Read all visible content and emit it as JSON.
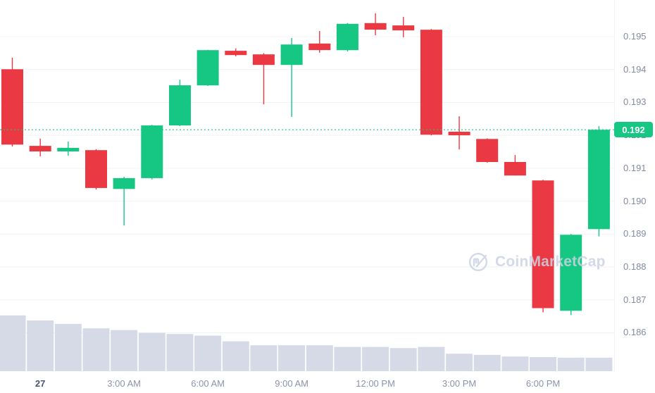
{
  "colors": {
    "up": "#16c784",
    "down": "#ea3943",
    "volume": "#d5dae6",
    "grid": "#f0f2f7",
    "axis_text": "#828ba0",
    "axis_text_emphasis": "#4a5472",
    "badge_bg": "#16c784",
    "badge_text": "#ffffff",
    "watermark": "#ccd3e3"
  },
  "watermark": {
    "label": "CoinMarketCap",
    "icon": "coinmarketcap-logo"
  },
  "price_badge": {
    "label": "0.192"
  },
  "chart_data": {
    "type": "candlestick",
    "title": "",
    "y_axis_side": "right",
    "grid": "horizontal",
    "y_tick_labels": [
      "0.195",
      "0.194",
      "0.193",
      "0.192",
      "0.191",
      "0.190",
      "0.189",
      "0.188",
      "0.187",
      "0.186"
    ],
    "x_ticks": [
      {
        "label": "27",
        "candle_index": 1,
        "emphasized": true
      },
      {
        "label": "3:00 AM",
        "candle_index": 4,
        "emphasized": false
      },
      {
        "label": "6:00 AM",
        "candle_index": 7,
        "emphasized": false
      },
      {
        "label": "9:00 AM",
        "candle_index": 10,
        "emphasized": false
      },
      {
        "label": "12:00 PM",
        "candle_index": 13,
        "emphasized": false
      },
      {
        "label": "3:00 PM",
        "candle_index": 16,
        "emphasized": false
      },
      {
        "label": "6:00 PM",
        "candle_index": 19,
        "emphasized": false
      }
    ],
    "current_price": 0.19217,
    "current_price_label": "0.192",
    "candles": [
      {
        "time": "11 PM",
        "o": 0.19401,
        "h": 0.19436,
        "l": 0.19166,
        "c": 0.19172
      },
      {
        "time": "12 AM",
        "o": 0.19168,
        "h": 0.1919,
        "l": 0.19136,
        "c": 0.19151
      },
      {
        "time": "1 AM",
        "o": 0.19151,
        "h": 0.19181,
        "l": 0.19138,
        "c": 0.19162
      },
      {
        "time": "2 AM",
        "o": 0.19155,
        "h": 0.19158,
        "l": 0.19035,
        "c": 0.1904
      },
      {
        "time": "3 AM",
        "o": 0.19037,
        "h": 0.19074,
        "l": 0.18926,
        "c": 0.1907
      },
      {
        "time": "4 AM",
        "o": 0.1907,
        "h": 0.19232,
        "l": 0.19066,
        "c": 0.1923
      },
      {
        "time": "5 AM",
        "o": 0.1923,
        "h": 0.19369,
        "l": 0.19228,
        "c": 0.19352
      },
      {
        "time": "6 AM",
        "o": 0.19352,
        "h": 0.1946,
        "l": 0.1935,
        "c": 0.19459
      },
      {
        "time": "7 AM",
        "o": 0.19457,
        "h": 0.19464,
        "l": 0.1944,
        "c": 0.19444
      },
      {
        "time": "8 AM",
        "o": 0.19446,
        "h": 0.1945,
        "l": 0.19294,
        "c": 0.19414
      },
      {
        "time": "9 AM",
        "o": 0.19414,
        "h": 0.19496,
        "l": 0.19256,
        "c": 0.19476
      },
      {
        "time": "10 AM",
        "o": 0.19479,
        "h": 0.19517,
        "l": 0.19451,
        "c": 0.19459
      },
      {
        "time": "11 AM",
        "o": 0.19459,
        "h": 0.19541,
        "l": 0.19455,
        "c": 0.19539
      },
      {
        "time": "12 PM",
        "o": 0.19541,
        "h": 0.19571,
        "l": 0.19504,
        "c": 0.19521
      },
      {
        "time": "1 PM",
        "o": 0.19534,
        "h": 0.1956,
        "l": 0.19498,
        "c": 0.19519
      },
      {
        "time": "2 PM",
        "o": 0.19521,
        "h": 0.19523,
        "l": 0.192,
        "c": 0.19202
      },
      {
        "time": "3 PM",
        "o": 0.19211,
        "h": 0.19258,
        "l": 0.19157,
        "c": 0.192
      },
      {
        "time": "4 PM",
        "o": 0.19189,
        "h": 0.19191,
        "l": 0.19117,
        "c": 0.19119
      },
      {
        "time": "5 PM",
        "o": 0.19119,
        "h": 0.1914,
        "l": 0.19078,
        "c": 0.19078
      },
      {
        "time": "6 PM",
        "o": 0.19063,
        "h": 0.19065,
        "l": 0.18662,
        "c": 0.18675
      },
      {
        "time": "7 PM",
        "o": 0.18667,
        "h": 0.189,
        "l": 0.18654,
        "c": 0.18898
      },
      {
        "time": "8 PM",
        "o": 0.18915,
        "h": 0.19228,
        "l": 0.18893,
        "c": 0.19217
      }
    ],
    "volume_rel": [
      0.99,
      0.9,
      0.84,
      0.76,
      0.73,
      0.68,
      0.66,
      0.63,
      0.53,
      0.46,
      0.46,
      0.46,
      0.43,
      0.43,
      0.41,
      0.43,
      0.31,
      0.29,
      0.26,
      0.25,
      0.24,
      0.24
    ]
  }
}
